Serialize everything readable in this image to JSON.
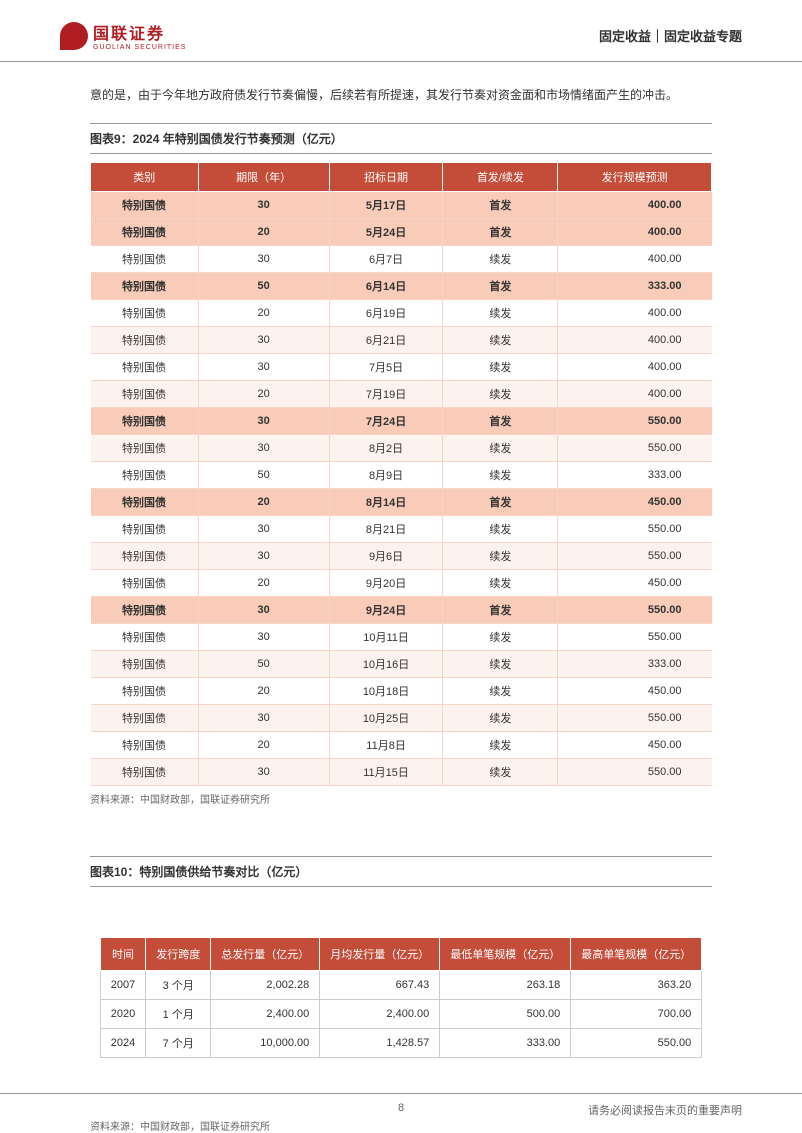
{
  "header": {
    "logo_cn": "国联证券",
    "logo_en": "GUOLIAN SECURITIES",
    "right": "固定收益｜固定收益专题"
  },
  "intro": "意的是，由于今年地方政府债发行节奏偏慢，后续若有所提速，其发行节奏对资金面和市场情绪面产生的冲击。",
  "table9": {
    "title": "图表9：2024 年特别国债发行节奏预测（亿元）",
    "headers": [
      "类别",
      "期限（年）",
      "招标日期",
      "首发/续发",
      "发行规模预测"
    ],
    "rows": [
      {
        "hl": true,
        "cells": [
          "特别国债",
          "30",
          "5月17日",
          "首发",
          "400.00"
        ]
      },
      {
        "hl": true,
        "cells": [
          "特别国债",
          "20",
          "5月24日",
          "首发",
          "400.00"
        ]
      },
      {
        "hl": false,
        "odd": false,
        "cells": [
          "特别国债",
          "30",
          "6月7日",
          "续发",
          "400.00"
        ]
      },
      {
        "hl": true,
        "cells": [
          "特别国债",
          "50",
          "6月14日",
          "首发",
          "333.00"
        ]
      },
      {
        "hl": false,
        "odd": false,
        "cells": [
          "特别国债",
          "20",
          "6月19日",
          "续发",
          "400.00"
        ]
      },
      {
        "hl": false,
        "odd": true,
        "cells": [
          "特别国债",
          "30",
          "6月21日",
          "续发",
          "400.00"
        ]
      },
      {
        "hl": false,
        "odd": false,
        "cells": [
          "特别国债",
          "30",
          "7月5日",
          "续发",
          "400.00"
        ]
      },
      {
        "hl": false,
        "odd": true,
        "cells": [
          "特别国债",
          "20",
          "7月19日",
          "续发",
          "400.00"
        ]
      },
      {
        "hl": true,
        "cells": [
          "特别国债",
          "30",
          "7月24日",
          "首发",
          "550.00"
        ]
      },
      {
        "hl": false,
        "odd": true,
        "cells": [
          "特别国债",
          "30",
          "8月2日",
          "续发",
          "550.00"
        ]
      },
      {
        "hl": false,
        "odd": false,
        "cells": [
          "特别国债",
          "50",
          "8月9日",
          "续发",
          "333.00"
        ]
      },
      {
        "hl": true,
        "cells": [
          "特别国债",
          "20",
          "8月14日",
          "首发",
          "450.00"
        ]
      },
      {
        "hl": false,
        "odd": false,
        "cells": [
          "特别国债",
          "30",
          "8月21日",
          "续发",
          "550.00"
        ]
      },
      {
        "hl": false,
        "odd": true,
        "cells": [
          "特别国债",
          "30",
          "9月6日",
          "续发",
          "550.00"
        ]
      },
      {
        "hl": false,
        "odd": false,
        "cells": [
          "特别国债",
          "20",
          "9月20日",
          "续发",
          "450.00"
        ]
      },
      {
        "hl": true,
        "cells": [
          "特别国债",
          "30",
          "9月24日",
          "首发",
          "550.00"
        ]
      },
      {
        "hl": false,
        "odd": false,
        "cells": [
          "特别国债",
          "30",
          "10月11日",
          "续发",
          "550.00"
        ]
      },
      {
        "hl": false,
        "odd": true,
        "cells": [
          "特别国债",
          "50",
          "10月16日",
          "续发",
          "333.00"
        ]
      },
      {
        "hl": false,
        "odd": false,
        "cells": [
          "特别国债",
          "20",
          "10月18日",
          "续发",
          "450.00"
        ]
      },
      {
        "hl": false,
        "odd": true,
        "cells": [
          "特别国债",
          "30",
          "10月25日",
          "续发",
          "550.00"
        ]
      },
      {
        "hl": false,
        "odd": false,
        "cells": [
          "特别国债",
          "20",
          "11月8日",
          "续发",
          "450.00"
        ]
      },
      {
        "hl": false,
        "odd": true,
        "cells": [
          "特别国债",
          "30",
          "11月15日",
          "续发",
          "550.00"
        ]
      }
    ],
    "source": "资料来源：中国财政部，国联证券研究所"
  },
  "table10": {
    "title": "图表10：特别国债供给节奏对比（亿元）",
    "headers": [
      "时间",
      "发行跨度",
      "总发行量（亿元）",
      "月均发行量（亿元）",
      "最低单笔规模（亿元）",
      "最高单笔规模（亿元）"
    ],
    "rows": [
      [
        "2007",
        "3 个月",
        "2,002.28",
        "667.43",
        "263.18",
        "363.20"
      ],
      [
        "2020",
        "1 个月",
        "2,400.00",
        "2,400.00",
        "500.00",
        "700.00"
      ],
      [
        "2024",
        "7 个月",
        "10,000.00",
        "1,428.57",
        "333.00",
        "550.00"
      ]
    ],
    "source": "资料来源：中国财政部，国联证券研究所"
  },
  "footer": {
    "page": "8",
    "disclaimer": "请务必阅读报告末页的重要声明"
  },
  "styles": {
    "header_bg": "#c44d3a",
    "highlight_bg": "#f8ccb8",
    "odd_bg": "#fdf3ee",
    "brand_color": "#b01e23"
  }
}
